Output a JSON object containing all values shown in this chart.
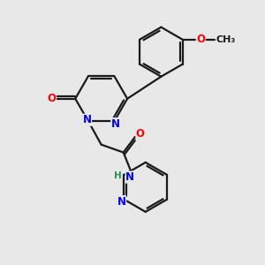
{
  "bg_color": "#e8e8e8",
  "bond_color": "#1a1a1a",
  "N_color": "#0000ff",
  "O_color": "#ff0000",
  "H_color": "#2e8b57",
  "line_width": 1.6,
  "font_size": 8.5,
  "figsize": [
    3.0,
    3.0
  ],
  "dpi": 100,
  "xlim": [
    0,
    10
  ],
  "ylim": [
    0,
    10
  ]
}
